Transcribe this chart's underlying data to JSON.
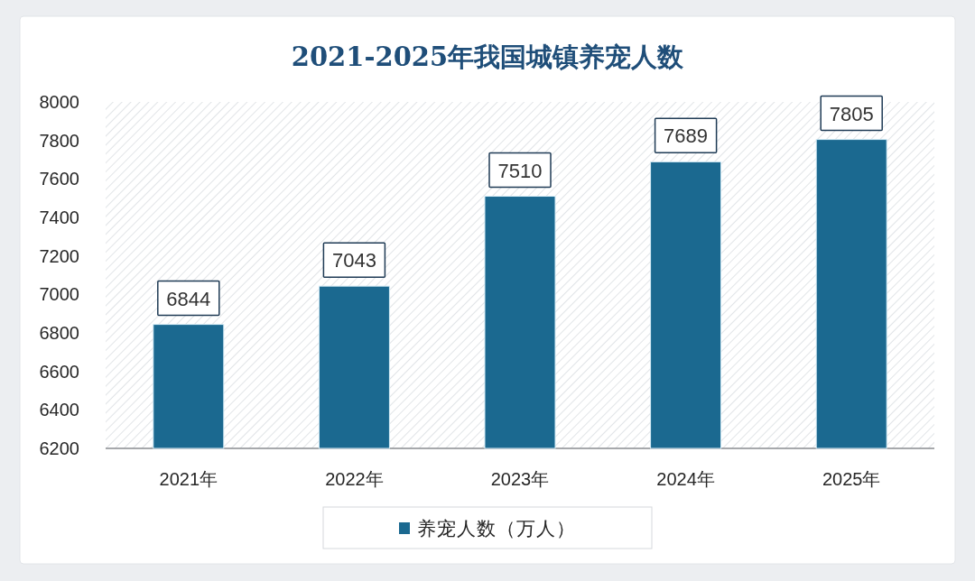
{
  "chart_data": {
    "type": "bar",
    "title": "2021-2025年我国城镇养宠人数",
    "categories": [
      "2021年",
      "2022年",
      "2023年",
      "2024年",
      "2025年"
    ],
    "series": [
      {
        "name": "养宠人数（万人）",
        "color": "#1b6990",
        "values": [
          6844,
          7043,
          7510,
          7689,
          7805
        ]
      }
    ],
    "ylim": [
      6200,
      8000
    ],
    "yticks": [
      6200,
      6400,
      6600,
      6800,
      7000,
      7200,
      7400,
      7600,
      7800,
      8000
    ],
    "data_labels": true,
    "legend": "bottom"
  }
}
